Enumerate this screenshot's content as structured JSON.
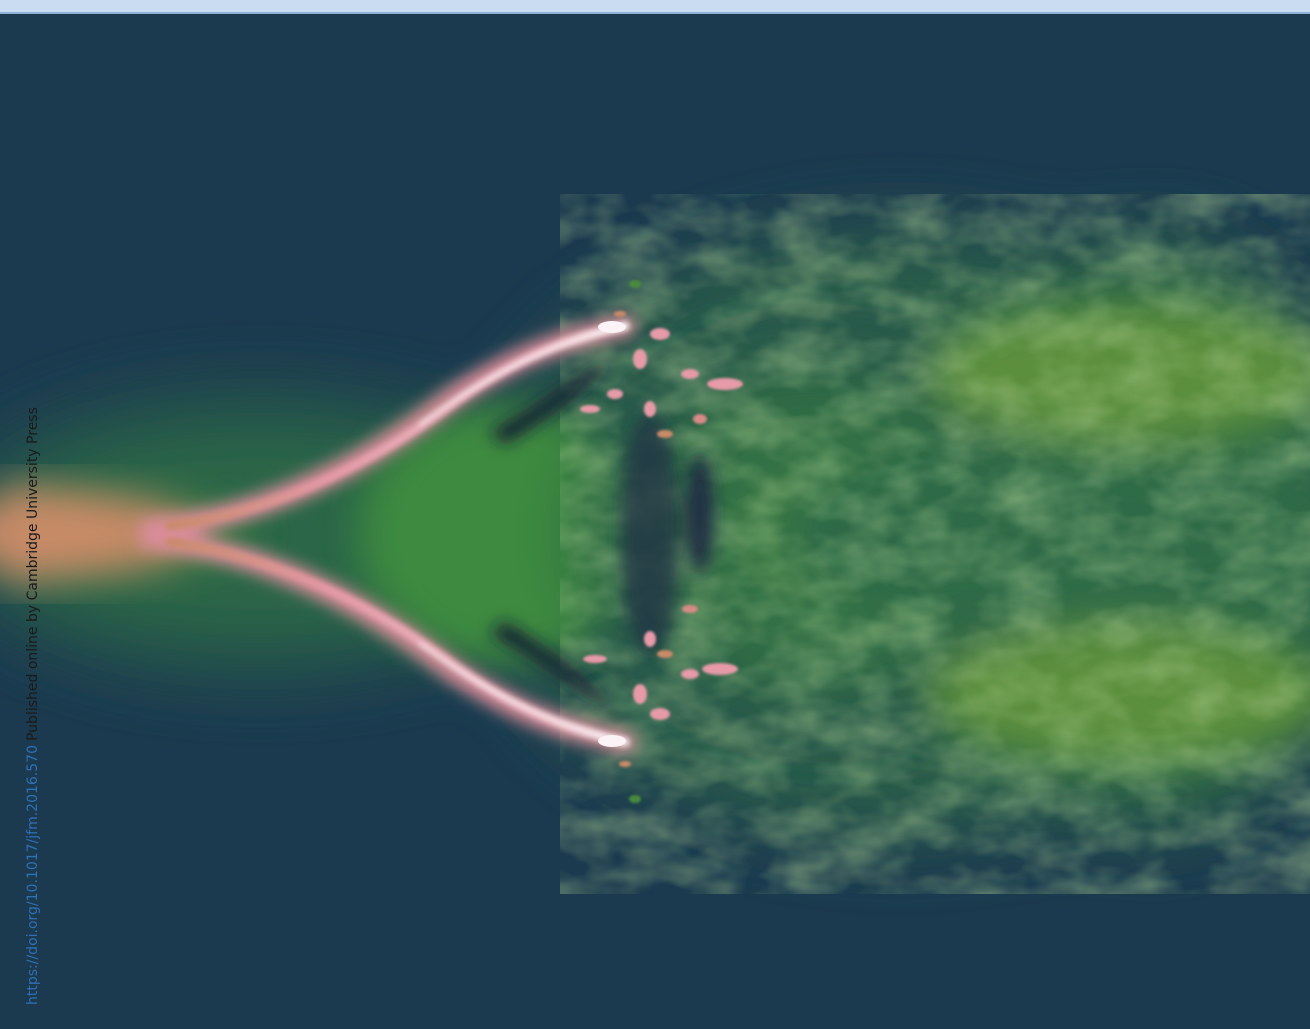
{
  "credit": {
    "doi_link": "https://doi.org/10.1017/jfm.2016.570",
    "publisher_note": "Published online by Cambridge University Press"
  },
  "colors": {
    "background": "#1b3a4f",
    "top_strip": "#c9dcf2",
    "flow_green": "#4a8a3e",
    "jet_core": "#c98a68",
    "shear_layer_pink": "#e79aa8",
    "highlight_white": "#fbf3f6",
    "vortex_dark": "#141c32",
    "doi_link": "#2f6fb5"
  }
}
